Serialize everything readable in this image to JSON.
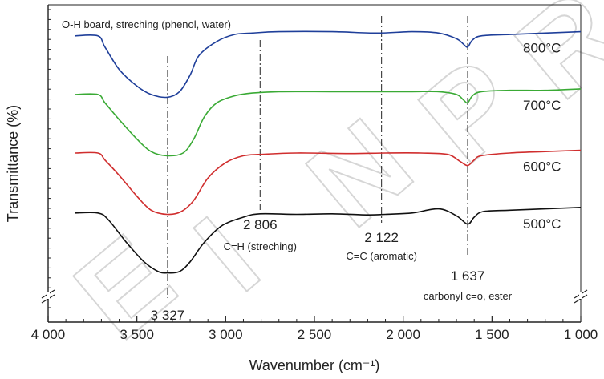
{
  "chart_data": {
    "type": "line",
    "title": "",
    "xlabel": "Wavenumber (cm⁻¹)",
    "ylabel": "Transmittance (%)",
    "xlim": [
      4000,
      1000
    ],
    "x_reversed": true,
    "y_tick_labels": false,
    "y_axis_break": true,
    "grid": false,
    "x_ticks": [
      {
        "value": 4000,
        "label": "4 000"
      },
      {
        "value": 3500,
        "label": "3 500"
      },
      {
        "value": 3000,
        "label": "3 000"
      },
      {
        "value": 2500,
        "label": "2 500"
      },
      {
        "value": 2000,
        "label": "2 000"
      },
      {
        "value": 1500,
        "label": "1 500"
      },
      {
        "value": 1000,
        "label": "1 000"
      }
    ],
    "note": "O-H board, streching (phenol, water)",
    "series": [
      {
        "name": "800°C",
        "color": "#1f3f9a",
        "points": [
          [
            3850,
            0.9
          ],
          [
            3720,
            0.9
          ],
          [
            3680,
            0.86
          ],
          [
            3600,
            0.78
          ],
          [
            3500,
            0.72
          ],
          [
            3420,
            0.69
          ],
          [
            3330,
            0.68
          ],
          [
            3260,
            0.7
          ],
          [
            3200,
            0.76
          ],
          [
            3150,
            0.83
          ],
          [
            3050,
            0.88
          ],
          [
            2950,
            0.905
          ],
          [
            2850,
            0.91
          ],
          [
            2700,
            0.915
          ],
          [
            2400,
            0.915
          ],
          [
            2150,
            0.91
          ],
          [
            1950,
            0.915
          ],
          [
            1800,
            0.91
          ],
          [
            1700,
            0.89
          ],
          [
            1660,
            0.87
          ],
          [
            1637,
            0.86
          ],
          [
            1610,
            0.885
          ],
          [
            1560,
            0.9
          ],
          [
            1400,
            0.905
          ],
          [
            1200,
            0.91
          ],
          [
            1000,
            0.915
          ]
        ]
      },
      {
        "name": "700°C",
        "color": "#3aaa35",
        "points": [
          [
            3850,
            0.69
          ],
          [
            3720,
            0.69
          ],
          [
            3680,
            0.66
          ],
          [
            3600,
            0.6
          ],
          [
            3500,
            0.53
          ],
          [
            3420,
            0.485
          ],
          [
            3330,
            0.47
          ],
          [
            3240,
            0.48
          ],
          [
            3180,
            0.53
          ],
          [
            3120,
            0.61
          ],
          [
            3050,
            0.66
          ],
          [
            2950,
            0.685
          ],
          [
            2850,
            0.695
          ],
          [
            2700,
            0.7
          ],
          [
            2400,
            0.7
          ],
          [
            2150,
            0.7
          ],
          [
            1950,
            0.7
          ],
          [
            1800,
            0.7
          ],
          [
            1700,
            0.69
          ],
          [
            1660,
            0.67
          ],
          [
            1637,
            0.66
          ],
          [
            1610,
            0.685
          ],
          [
            1560,
            0.7
          ],
          [
            1400,
            0.705
          ],
          [
            1200,
            0.705
          ],
          [
            1000,
            0.71
          ]
        ]
      },
      {
        "name": "600°C",
        "color": "#d02e2e",
        "points": [
          [
            3850,
            0.48
          ],
          [
            3720,
            0.48
          ],
          [
            3680,
            0.455
          ],
          [
            3600,
            0.4
          ],
          [
            3500,
            0.325
          ],
          [
            3420,
            0.275
          ],
          [
            3330,
            0.26
          ],
          [
            3250,
            0.27
          ],
          [
            3180,
            0.31
          ],
          [
            3100,
            0.39
          ],
          [
            3000,
            0.445
          ],
          [
            2900,
            0.47
          ],
          [
            2800,
            0.475
          ],
          [
            2600,
            0.48
          ],
          [
            2300,
            0.478
          ],
          [
            2100,
            0.48
          ],
          [
            1900,
            0.48
          ],
          [
            1750,
            0.475
          ],
          [
            1680,
            0.45
          ],
          [
            1637,
            0.435
          ],
          [
            1600,
            0.455
          ],
          [
            1560,
            0.47
          ],
          [
            1400,
            0.48
          ],
          [
            1200,
            0.485
          ],
          [
            1000,
            0.49
          ]
        ]
      },
      {
        "name": "500°C",
        "color": "#111111",
        "points": [
          [
            3850,
            0.265
          ],
          [
            3720,
            0.265
          ],
          [
            3660,
            0.24
          ],
          [
            3560,
            0.16
          ],
          [
            3460,
            0.09
          ],
          [
            3380,
            0.055
          ],
          [
            3330,
            0.05
          ],
          [
            3260,
            0.055
          ],
          [
            3200,
            0.09
          ],
          [
            3120,
            0.16
          ],
          [
            3020,
            0.22
          ],
          [
            2900,
            0.25
          ],
          [
            2806,
            0.262
          ],
          [
            2600,
            0.26
          ],
          [
            2400,
            0.262
          ],
          [
            2200,
            0.258
          ],
          [
            2100,
            0.26
          ],
          [
            1950,
            0.265
          ],
          [
            1800,
            0.28
          ],
          [
            1700,
            0.255
          ],
          [
            1637,
            0.225
          ],
          [
            1600,
            0.25
          ],
          [
            1550,
            0.27
          ],
          [
            1400,
            0.275
          ],
          [
            1200,
            0.28
          ],
          [
            1000,
            0.285
          ]
        ]
      }
    ],
    "peaks": [
      {
        "x": 3327,
        "value_label": "3 327",
        "desc": ""
      },
      {
        "x": 2806,
        "value_label": "2 806",
        "desc": "C=H (streching)"
      },
      {
        "x": 2122,
        "value_label": "2 122",
        "desc": "C=C (aromatic)"
      },
      {
        "x": 1637,
        "value_label": "1 637",
        "desc": "carbonyl c=o, ester"
      }
    ],
    "watermark": "EINPR"
  }
}
